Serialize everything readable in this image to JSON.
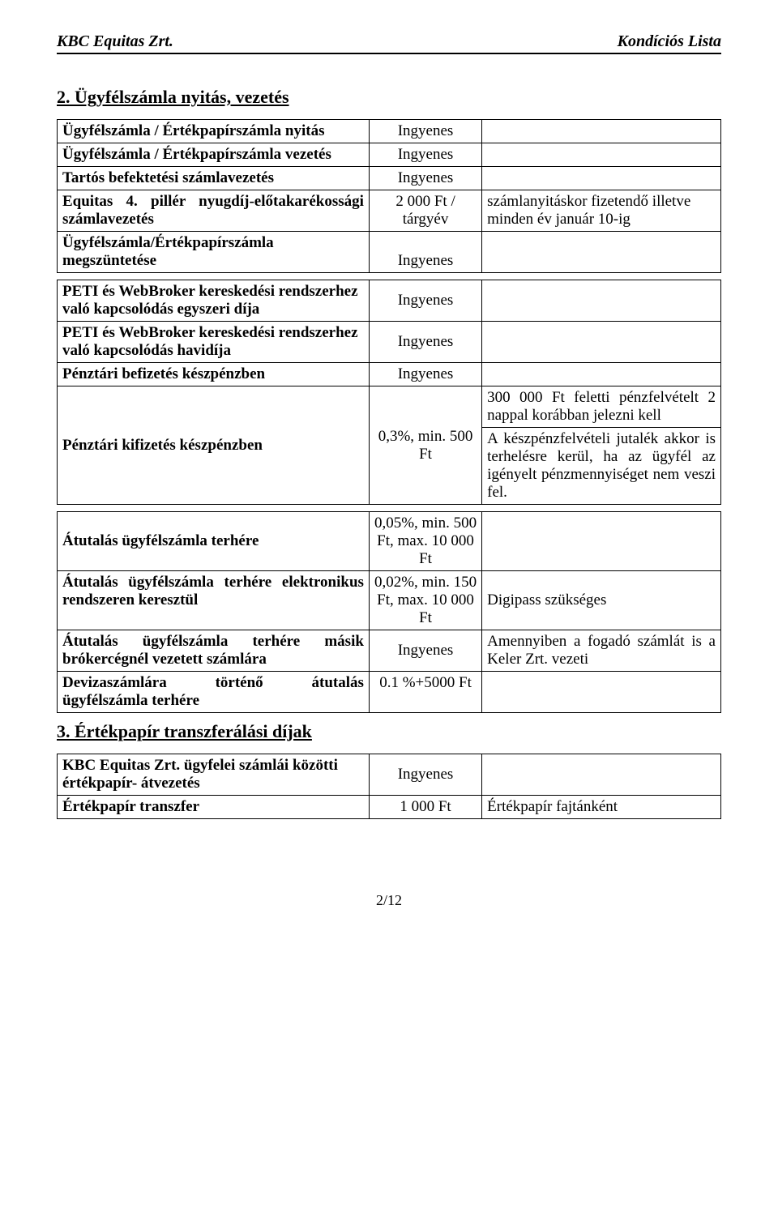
{
  "header": {
    "left": "KBC Equitas Zrt.",
    "right": "Kondíciós Lista"
  },
  "section2": {
    "title": "2. Ügyfélszámla nyitás, vezetés",
    "rows": [
      {
        "label": "Ügyfélszámla / Értékpapírszámla nyitás",
        "value": "Ingyenes",
        "note": ""
      },
      {
        "label": "Ügyfélszámla / Értékpapírszámla vezetés",
        "value": "Ingyenes",
        "note": ""
      },
      {
        "label": "Tartós befektetési számlavezetés",
        "value": "Ingyenes",
        "note": ""
      },
      {
        "label": "Equitas 4. pillér nyugdíj-előtakarékossági számlavezetés",
        "value": "2 000 Ft / tárgyév",
        "note": "számlanyitáskor fizetendő illetve minden év január 10-ig"
      },
      {
        "label": "Ügyfélszámla/Értékpapírszámla megszüntetése",
        "value": "Ingyenes",
        "note": ""
      }
    ]
  },
  "section2b": {
    "rows": [
      {
        "label": "PETI és WebBroker kereskedési rendszerhez való kapcsolódás egyszeri díja",
        "value": "Ingyenes",
        "note": ""
      },
      {
        "label": "PETI és WebBroker kereskedési rendszerhez való kapcsolódás havidíja",
        "value": "Ingyenes",
        "note": ""
      },
      {
        "label": "Pénztári befizetés készpénzben",
        "value": "Ingyenes",
        "note": ""
      },
      {
        "label": "Pénztári kifizetés készpénzben",
        "value": "0,3%, min. 500 Ft",
        "note1": "300 000 Ft feletti pénzfelvételt 2 nappal korábban jelezni kell",
        "note2": "A készpénzfelvételi jutalék akkor is terhelésre kerül, ha az ügyfél az igényelt pénzmennyiséget nem veszi fel."
      }
    ]
  },
  "section2c": {
    "rows": [
      {
        "label": "Átutalás ügyfélszámla terhére",
        "value": "0,05%, min. 500 Ft, max. 10 000 Ft",
        "note": ""
      },
      {
        "label": "Átutalás ügyfélszámla terhére elektronikus rendszeren keresztül",
        "value": "0,02%, min. 150 Ft, max. 10 000 Ft",
        "note": "Digipass szükséges"
      },
      {
        "label": "Átutalás ügyfélszámla terhére másik brókercégnél vezetett számlára",
        "value": "Ingyenes",
        "note": "Amennyiben a fogadó számlát is a Keler Zrt. vezeti"
      },
      {
        "label": "Devizaszámlára történő átutalás ügyfélszámla terhére",
        "value": "0.1 %+5000 Ft",
        "note": ""
      }
    ]
  },
  "section3": {
    "title": "3. Értékpapír transzferálási díjak",
    "rows": [
      {
        "label": "KBC Equitas Zrt. ügyfelei számlái közötti értékpapír- átvezetés",
        "value": "Ingyenes",
        "note": ""
      },
      {
        "label": "Értékpapír transzfer",
        "value": "1 000 Ft",
        "note": "Értékpapír fajtánként"
      }
    ]
  },
  "footer": "2/12"
}
